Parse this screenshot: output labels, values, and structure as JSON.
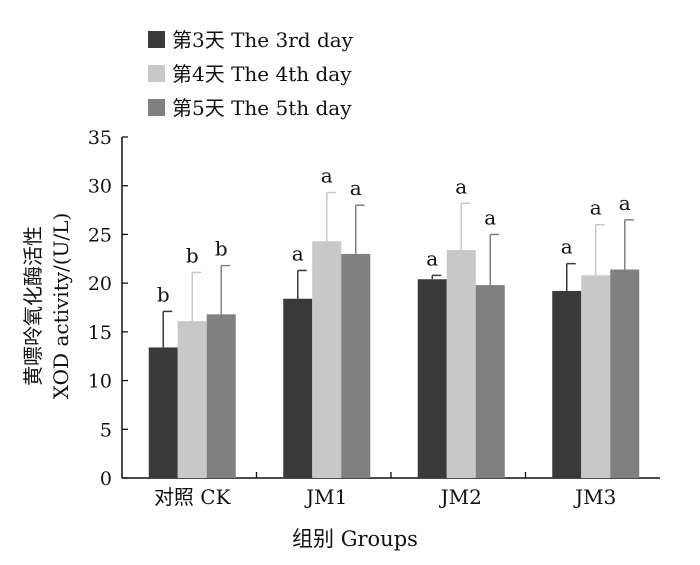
{
  "chart_data": {
    "type": "bar",
    "title": "",
    "xlabel": "组别  Groups",
    "ylabel_line1": "黄嘌呤氧化酶活性",
    "ylabel_line2": "XOD activity/(U/L)",
    "ylim": [
      0,
      35
    ],
    "yticks": [
      0,
      5,
      10,
      15,
      20,
      25,
      30,
      35
    ],
    "grid": false,
    "legend_position": "top-left",
    "categories": [
      "对照  CK",
      "JM1",
      "JM2",
      "JM3"
    ],
    "series": [
      {
        "name": "第3天  The 3rd day",
        "color": "#3a3a3a",
        "values": [
          13.4,
          18.4,
          20.4,
          19.2
        ],
        "errors": [
          3.7,
          2.9,
          0.4,
          2.8
        ],
        "letters": [
          "b",
          "a",
          "a",
          "a"
        ]
      },
      {
        "name": "第4天  The 4th day",
        "color": "#c8c8c8",
        "values": [
          16.1,
          24.3,
          23.4,
          20.8
        ],
        "errors": [
          5.0,
          5.0,
          4.8,
          5.2
        ],
        "letters": [
          "b",
          "a",
          "a",
          "a"
        ]
      },
      {
        "name": "第5天  The 5th day",
        "color": "#808080",
        "values": [
          16.8,
          23.0,
          19.8,
          21.4
        ],
        "errors": [
          5.0,
          5.0,
          5.2,
          5.1
        ],
        "letters": [
          "b",
          "a",
          "a",
          "a"
        ]
      }
    ]
  }
}
